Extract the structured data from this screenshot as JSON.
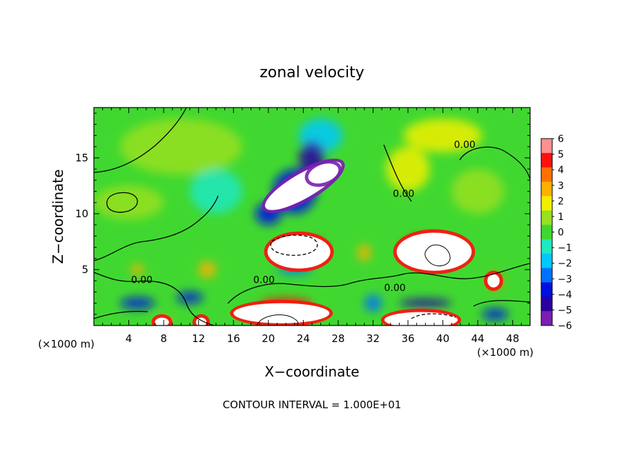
{
  "chart_data": {
    "type": "heatmap",
    "title": "zonal velocity",
    "xlabel": "X−coordinate",
    "ylabel": "Z−coordinate",
    "x_unit_left": "(×1000 m)",
    "x_unit_right": "(×1000 m)",
    "footer": "CONTOUR INTERVAL = 1.000E+01",
    "xlim": [
      0,
      50
    ],
    "ylim": [
      0,
      19.5
    ],
    "x_ticks": [
      4,
      8,
      12,
      16,
      20,
      24,
      28,
      32,
      36,
      40,
      44,
      48
    ],
    "x_tick_labels": [
      "4",
      "8",
      "12",
      "16",
      "20",
      "24",
      "28",
      "32",
      "36",
      "40",
      "44",
      "48"
    ],
    "y_ticks": [
      5,
      10,
      15
    ],
    "y_tick_labels": [
      "5",
      "10",
      "15"
    ],
    "colorbar": {
      "range": [
        -6,
        6
      ],
      "ticks": [
        6,
        5,
        4,
        3,
        2,
        1,
        0,
        -1,
        -2,
        -3,
        -4,
        -5,
        -6
      ],
      "tick_labels": [
        "6",
        "5",
        "4",
        "3",
        "2",
        "1",
        "0",
        "−1",
        "−2",
        "−3",
        "−4",
        "−5",
        "−6"
      ],
      "colors": [
        "#7a1fb0",
        "#2a00a0",
        "#0010e0",
        "#0070ff",
        "#00c8ff",
        "#20e8c0",
        "#40d830",
        "#98e020",
        "#f0f000",
        "#ffb000",
        "#ff7000",
        "#ff1010",
        "#ff9090"
      ]
    },
    "contour_labels": [
      {
        "text": "0.00",
        "x": 42.5,
        "y": 15.9
      },
      {
        "text": "0.00",
        "x": 5.5,
        "y": 3.8
      },
      {
        "text": "0.00",
        "x": 19.5,
        "y": 3.8
      },
      {
        "text": "0.00",
        "x": 34.5,
        "y": 3.1
      },
      {
        "text": "0.00",
        "x": 35.5,
        "y": 11.5
      }
    ],
    "field_features": [
      {
        "value": 0.5,
        "x": 10,
        "y": 16,
        "sx": 14,
        "sy": 5
      },
      {
        "value": 0.8,
        "x": 4,
        "y": 11,
        "sx": 8,
        "sy": 3
      },
      {
        "value": -1.2,
        "x": 14,
        "y": 12,
        "sx": 6,
        "sy": 4
      },
      {
        "value": -1.6,
        "x": 26,
        "y": 17,
        "sx": 5,
        "sy": 3
      },
      {
        "value": -3.5,
        "x": 23,
        "y": 12,
        "sx": 5,
        "sy": 4
      },
      {
        "value": -4.5,
        "x": 25,
        "y": 15,
        "sx": 3,
        "sy": 3
      },
      {
        "value": -4.0,
        "x": 20,
        "y": 10,
        "sx": 3,
        "sy": 2
      },
      {
        "value": 2.0,
        "x": 40,
        "y": 17,
        "sx": 9,
        "sy": 3
      },
      {
        "value": 1.0,
        "x": 44,
        "y": 12,
        "sx": 6,
        "sy": 4
      },
      {
        "value": 1.4,
        "x": 36,
        "y": 14,
        "sx": 5,
        "sy": 4
      },
      {
        "value": 4.5,
        "x": 38,
        "y": 7,
        "sx": 5,
        "sy": 2
      },
      {
        "value": 4.5,
        "x": 25,
        "y": 7,
        "sx": 3,
        "sy": 1.5
      },
      {
        "value": 3.0,
        "x": 31,
        "y": 6.5,
        "sx": 1.5,
        "sy": 1.5
      },
      {
        "value": 4.0,
        "x": 46,
        "y": 4,
        "sx": 1.5,
        "sy": 1.5
      },
      {
        "value": 3.2,
        "x": 5,
        "y": 5,
        "sx": 1.5,
        "sy": 1
      },
      {
        "value": 2.5,
        "x": 13,
        "y": 5,
        "sx": 2,
        "sy": 1.5
      },
      {
        "value": -3.5,
        "x": 5,
        "y": 2,
        "sx": 4,
        "sy": 1
      },
      {
        "value": -3.5,
        "x": 11,
        "y": 2.5,
        "sx": 3,
        "sy": 1
      },
      {
        "value": 4.2,
        "x": 22,
        "y": 2,
        "sx": 6,
        "sy": 0.8
      },
      {
        "value": -3.0,
        "x": 23,
        "y": 5,
        "sx": 4,
        "sy": 0.8
      },
      {
        "value": -4.5,
        "x": 38,
        "y": 2,
        "sx": 6,
        "sy": 0.8
      },
      {
        "value": 4.0,
        "x": 38,
        "y": 0.5,
        "sx": 5,
        "sy": 0.8
      },
      {
        "value": -3.0,
        "x": 32,
        "y": 2,
        "sx": 2,
        "sy": 1.5
      },
      {
        "value": -3.5,
        "x": 46,
        "y": 1,
        "sx": 3,
        "sy": 1
      },
      {
        "value": 2.5,
        "x": 8,
        "y": 0.4,
        "sx": 2,
        "sy": 0.6
      }
    ],
    "saturated_regions": [
      {
        "sign": "negative",
        "x": 24,
        "y": 12.5,
        "rx": 5,
        "ry": 1.1,
        "angle_deg": -30
      },
      {
        "sign": "negative",
        "x": 26.3,
        "y": 13.6,
        "rx": 1.8,
        "ry": 0.8,
        "angle_deg": -20
      },
      {
        "sign": "positive",
        "x": 23.5,
        "y": 6.6,
        "rx": 3.6,
        "ry": 1.5,
        "angle_deg": 0
      },
      {
        "sign": "positive",
        "x": 39,
        "y": 6.6,
        "rx": 4.3,
        "ry": 1.7,
        "angle_deg": 0
      },
      {
        "sign": "positive",
        "x": 21.5,
        "y": 1.1,
        "rx": 5.5,
        "ry": 0.9,
        "angle_deg": 0
      },
      {
        "sign": "positive",
        "x": 37.5,
        "y": 0.5,
        "rx": 4.2,
        "ry": 0.7,
        "angle_deg": 0
      },
      {
        "sign": "positive",
        "x": 45.8,
        "y": 4.0,
        "rx": 0.7,
        "ry": 0.6,
        "angle_deg": 0
      },
      {
        "sign": "positive",
        "x": 7.8,
        "y": 0.3,
        "rx": 0.8,
        "ry": 0.4,
        "angle_deg": 0
      },
      {
        "sign": "positive",
        "x": 12.3,
        "y": 0.3,
        "rx": 0.6,
        "ry": 0.4,
        "angle_deg": 0
      }
    ]
  }
}
